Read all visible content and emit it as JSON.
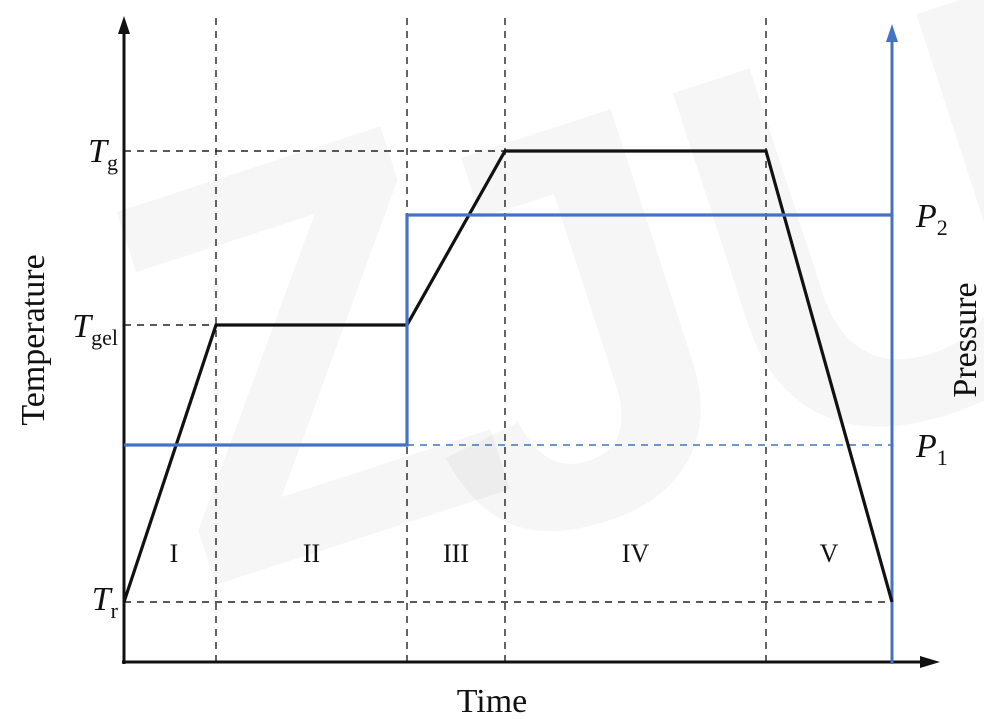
{
  "chart_data": {
    "type": "line",
    "title": "",
    "xlabel": "Time",
    "ylabel_left": "Temperature",
    "ylabel_right": "Pressure",
    "temperature_levels": [
      {
        "id": "Tr",
        "main": "T",
        "sub": "r"
      },
      {
        "id": "Tgel",
        "main": "T",
        "sub": "gel"
      },
      {
        "id": "Tg",
        "main": "T",
        "sub": "g"
      }
    ],
    "pressure_levels": [
      {
        "id": "P1",
        "main": "P",
        "sub": "1"
      },
      {
        "id": "P2",
        "main": "P",
        "sub": "2"
      }
    ],
    "stages": [
      "I",
      "II",
      "III",
      "IV",
      "V"
    ],
    "series": [
      {
        "axis": "left",
        "color": "#111111",
        "points": [
          [
            0,
            "Tr"
          ],
          [
            1,
            "Tgel"
          ],
          [
            2,
            "Tgel"
          ],
          [
            3,
            "Tg"
          ],
          [
            4,
            "Tg"
          ],
          [
            5,
            "Tr"
          ]
        ]
      },
      {
        "axis": "right",
        "color": "#4472C4",
        "points": [
          [
            0,
            "P1"
          ],
          [
            2,
            "P1"
          ],
          [
            2,
            "P2"
          ],
          [
            5,
            "P2"
          ]
        ]
      }
    ],
    "watermark": "ZJU",
    "colors": {
      "temperature": "#111111",
      "pressure": "#4472C4",
      "guides": "#222222"
    }
  }
}
